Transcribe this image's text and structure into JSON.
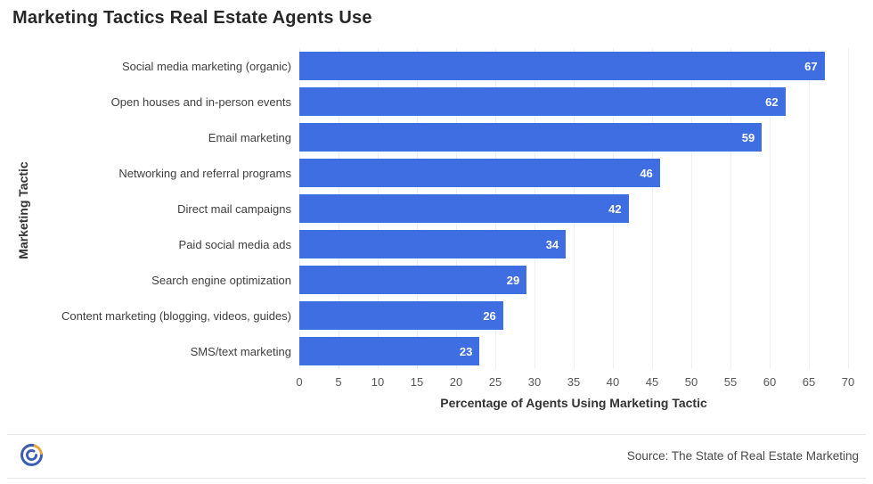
{
  "chart_data": {
    "type": "bar",
    "orientation": "horizontal",
    "title": "Marketing Tactics Real Estate Agents Use",
    "categories": [
      "Social media marketing (organic)",
      "Open houses and in-person events",
      "Email marketing",
      "Networking and referral programs",
      "Direct mail campaigns",
      "Paid social media ads",
      "Search engine optimization",
      "Content marketing (blogging, videos, guides)",
      "SMS/text marketing"
    ],
    "values": [
      67,
      62,
      59,
      46,
      42,
      34,
      29,
      26,
      23
    ],
    "xlabel": "Percentage of Agents Using Marketing Tactic",
    "ylabel": "Marketing Tactic",
    "xlim": [
      0,
      70
    ],
    "xticks": [
      0,
      5,
      10,
      15,
      20,
      25,
      30,
      35,
      40,
      45,
      50,
      55,
      60,
      65,
      70
    ],
    "grid": "vertical-light",
    "legend": "none",
    "bar_color": "#3e6ee1",
    "value_label_color": "#ffffff",
    "gridline_color": "#f1eeee"
  },
  "footer": {
    "source": "Source: The State of Real Estate Marketing",
    "logo": "spiral-target-logo",
    "logo_colors": {
      "blue": "#3b5eb3",
      "gold": "#e6a63c"
    }
  }
}
